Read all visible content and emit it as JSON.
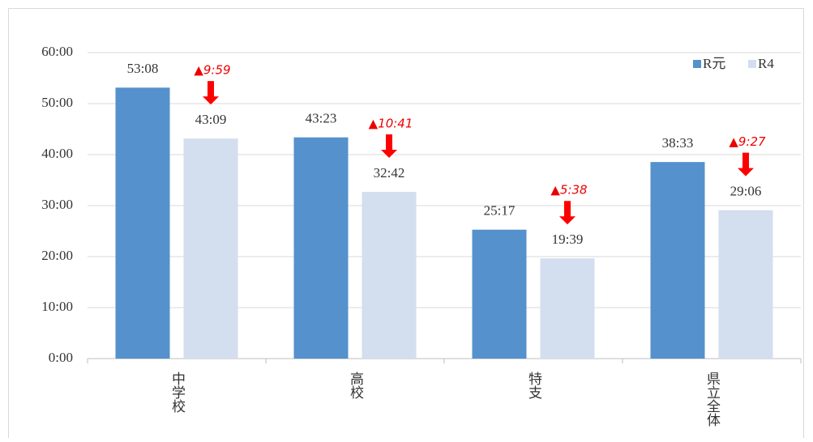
{
  "chart_data": {
    "type": "bar",
    "categories": [
      "中学校",
      "高校",
      "特支",
      "県立全体"
    ],
    "series": [
      {
        "name": "R元",
        "color": "#5591cc",
        "values": [
          53.1333,
          43.3833,
          25.2833,
          38.55
        ],
        "value_labels": [
          "53:08",
          "43:23",
          "25:17",
          "38:33"
        ]
      },
      {
        "name": "R4",
        "color": "#d3deef",
        "values": [
          43.15,
          32.7,
          19.65,
          29.1
        ],
        "value_labels": [
          "43:09",
          "32:42",
          "19:39",
          "29:06"
        ]
      }
    ],
    "annotations": [
      "▲9:59",
      "▲10:41",
      "▲5:38",
      "▲9:27"
    ],
    "ylim": [
      0,
      60
    ],
    "yticks": [
      {
        "value": 0,
        "label": "0:00"
      },
      {
        "value": 10,
        "label": "10:00"
      },
      {
        "value": 20,
        "label": "20:00"
      },
      {
        "value": 30,
        "label": "30:00"
      },
      {
        "value": 40,
        "label": "40:00"
      },
      {
        "value": 50,
        "label": "50:00"
      },
      {
        "value": 60,
        "label": "60:00"
      }
    ],
    "grid": true,
    "legend": "top-right"
  }
}
